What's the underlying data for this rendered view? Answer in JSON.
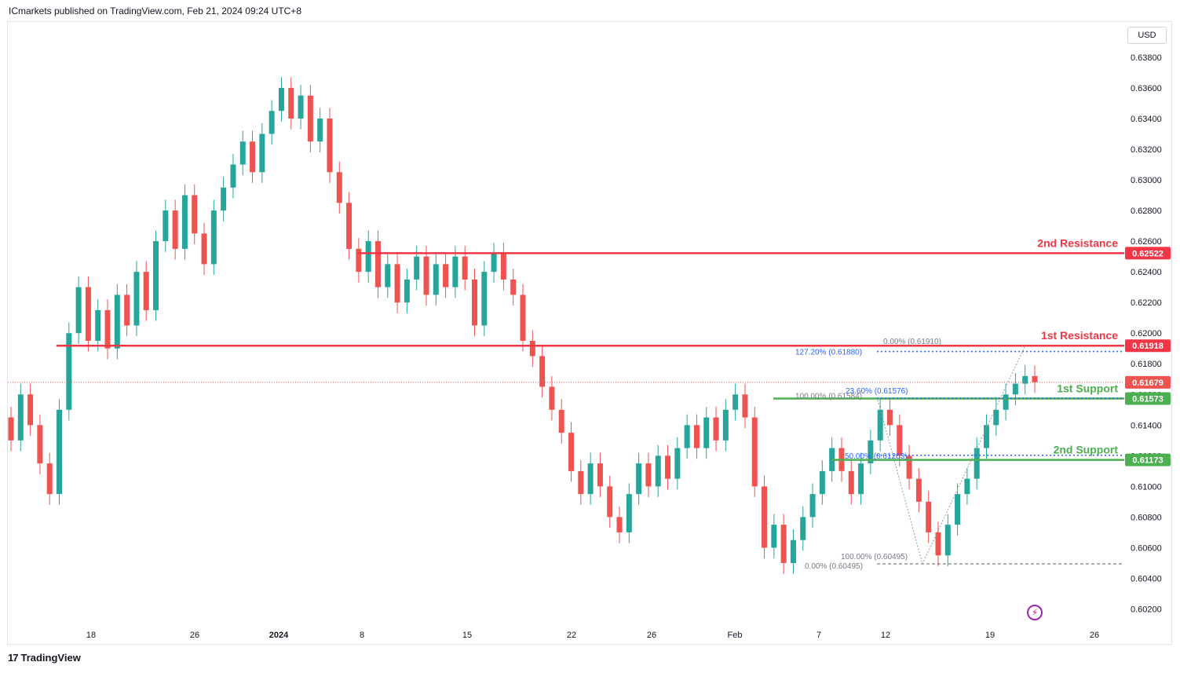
{
  "header": {
    "publisher": "ICmarkets published on TradingView.com, Feb 21, 2024 09:24 UTC+8"
  },
  "footer": {
    "logo": "17",
    "brand": "TradingView"
  },
  "currency_button": "USD",
  "colors": {
    "up": "#26a69a",
    "down": "#ef5350",
    "resistance": "#f23645",
    "support": "#4caf50",
    "price_line": "#ef5350",
    "fib_blue": "#2962ff",
    "fib_gray": "#787b86"
  },
  "icons": {
    "flash": "lightning-icon"
  },
  "chart_data": {
    "type": "candlestick",
    "y_axis": {
      "ticks": [
        "0.63800",
        "0.63600",
        "0.63400",
        "0.63200",
        "0.63000",
        "0.62800",
        "0.62600",
        "0.62400",
        "0.62200",
        "0.62000",
        "0.61800",
        "0.61600",
        "0.61400",
        "0.61200",
        "0.61000",
        "0.60800",
        "0.60600",
        "0.60400",
        "0.60200"
      ],
      "range": [
        0.6009,
        0.6403
      ]
    },
    "x_axis": {
      "ticks": [
        {
          "label": "18",
          "bold": false
        },
        {
          "label": "26",
          "bold": false
        },
        {
          "label": "2024",
          "bold": true
        },
        {
          "label": "8",
          "bold": false
        },
        {
          "label": "15",
          "bold": false
        },
        {
          "label": "22",
          "bold": false
        },
        {
          "label": "26",
          "bold": false
        },
        {
          "label": "Feb",
          "bold": false
        },
        {
          "label": "7",
          "bold": false
        },
        {
          "label": "12",
          "bold": false
        },
        {
          "label": "19",
          "bold": false
        },
        {
          "label": "26",
          "bold": false
        }
      ]
    },
    "levels": [
      {
        "name": "2nd Resistance",
        "value": 0.62522,
        "badge": "0.62522",
        "kind": "resistance"
      },
      {
        "name": "1st Resistance",
        "value": 0.61918,
        "badge": "0.61918",
        "kind": "resistance"
      },
      {
        "name": "1st Support",
        "value": 0.61573,
        "badge": "0.61573",
        "kind": "support"
      },
      {
        "name": "2nd Support",
        "value": 0.61173,
        "badge": "0.61173",
        "kind": "support"
      }
    ],
    "last_price": {
      "value": 0.61679,
      "badge": "0.61679"
    },
    "fib_labels": [
      {
        "text": "0.00% (0.61910)",
        "value": 0.6191,
        "kind": "gray"
      },
      {
        "text": "127.20% (0.61880)",
        "value": 0.6188,
        "kind": "blue"
      },
      {
        "text": "100.00% (0.61584)",
        "value": 0.61584,
        "kind": "gray"
      },
      {
        "text": "23.60% (0.61576)",
        "value": 0.61576,
        "kind": "blue"
      },
      {
        "text": "50.00% (0.61203)",
        "value": 0.61203,
        "kind": "blue"
      },
      {
        "text": "100.00% (0.60495)",
        "value": 0.60495,
        "kind": "gray"
      },
      {
        "text": "0.00% (0.60495)",
        "value": 0.60495,
        "kind": "gray"
      }
    ],
    "price_path": [
      [
        0.6145,
        0.613
      ],
      [
        0.613,
        0.616
      ],
      [
        0.616,
        0.614
      ],
      [
        0.614,
        0.6115
      ],
      [
        0.6115,
        0.6095
      ],
      [
        0.6095,
        0.615
      ],
      [
        0.615,
        0.62
      ],
      [
        0.62,
        0.623
      ],
      [
        0.623,
        0.6195
      ],
      [
        0.6195,
        0.6215
      ],
      [
        0.6215,
        0.619
      ],
      [
        0.619,
        0.6225
      ],
      [
        0.6225,
        0.6205
      ],
      [
        0.6205,
        0.624
      ],
      [
        0.624,
        0.6215
      ],
      [
        0.6215,
        0.626
      ],
      [
        0.626,
        0.628
      ],
      [
        0.628,
        0.6255
      ],
      [
        0.6255,
        0.629
      ],
      [
        0.629,
        0.6265
      ],
      [
        0.6265,
        0.6245
      ],
      [
        0.6245,
        0.628
      ],
      [
        0.628,
        0.6295
      ],
      [
        0.6295,
        0.631
      ],
      [
        0.631,
        0.6325
      ],
      [
        0.6325,
        0.6305
      ],
      [
        0.6305,
        0.633
      ],
      [
        0.633,
        0.6345
      ],
      [
        0.6345,
        0.636
      ],
      [
        0.636,
        0.634
      ],
      [
        0.634,
        0.6355
      ],
      [
        0.6355,
        0.6325
      ],
      [
        0.6325,
        0.634
      ],
      [
        0.634,
        0.6305
      ],
      [
        0.6305,
        0.6285
      ],
      [
        0.6285,
        0.6255
      ],
      [
        0.6255,
        0.624
      ],
      [
        0.624,
        0.626
      ],
      [
        0.626,
        0.623
      ],
      [
        0.623,
        0.6245
      ],
      [
        0.6245,
        0.622
      ],
      [
        0.622,
        0.6235
      ],
      [
        0.6235,
        0.625
      ],
      [
        0.625,
        0.6225
      ],
      [
        0.6225,
        0.6245
      ],
      [
        0.6245,
        0.623
      ],
      [
        0.623,
        0.625
      ],
      [
        0.625,
        0.6235
      ],
      [
        0.6235,
        0.6205
      ],
      [
        0.6205,
        0.624
      ],
      [
        0.624,
        0.6252
      ],
      [
        0.6252,
        0.6235
      ],
      [
        0.6235,
        0.6225
      ],
      [
        0.6225,
        0.6195
      ],
      [
        0.6195,
        0.6185
      ],
      [
        0.6185,
        0.6165
      ],
      [
        0.6165,
        0.615
      ],
      [
        0.615,
        0.6135
      ],
      [
        0.6135,
        0.611
      ],
      [
        0.611,
        0.6095
      ],
      [
        0.6095,
        0.6115
      ],
      [
        0.6115,
        0.61
      ],
      [
        0.61,
        0.608
      ],
      [
        0.608,
        0.607
      ],
      [
        0.607,
        0.6095
      ],
      [
        0.6095,
        0.6115
      ],
      [
        0.6115,
        0.61
      ],
      [
        0.61,
        0.612
      ],
      [
        0.612,
        0.6105
      ],
      [
        0.6105,
        0.6125
      ],
      [
        0.6125,
        0.614
      ],
      [
        0.614,
        0.6125
      ],
      [
        0.6125,
        0.6145
      ],
      [
        0.6145,
        0.613
      ],
      [
        0.613,
        0.615
      ],
      [
        0.615,
        0.616
      ],
      [
        0.616,
        0.6145
      ],
      [
        0.6145,
        0.61
      ],
      [
        0.61,
        0.606
      ],
      [
        0.606,
        0.6075
      ],
      [
        0.6075,
        0.605
      ],
      [
        0.605,
        0.6065
      ],
      [
        0.6065,
        0.608
      ],
      [
        0.608,
        0.6095
      ],
      [
        0.6095,
        0.611
      ],
      [
        0.611,
        0.6125
      ],
      [
        0.6125,
        0.611
      ],
      [
        0.611,
        0.6095
      ],
      [
        0.6095,
        0.6115
      ],
      [
        0.6115,
        0.613
      ],
      [
        0.613,
        0.615
      ],
      [
        0.615,
        0.614
      ],
      [
        0.614,
        0.612
      ],
      [
        0.612,
        0.6105
      ],
      [
        0.6105,
        0.609
      ],
      [
        0.609,
        0.607
      ],
      [
        0.607,
        0.6055
      ],
      [
        0.6055,
        0.6075
      ],
      [
        0.6075,
        0.6095
      ],
      [
        0.6095,
        0.6105
      ],
      [
        0.6105,
        0.6125
      ],
      [
        0.6125,
        0.614
      ],
      [
        0.614,
        0.615
      ],
      [
        0.615,
        0.616
      ],
      [
        0.616,
        0.6167
      ],
      [
        0.6167,
        0.6172
      ],
      [
        0.6172,
        0.6168
      ]
    ]
  }
}
